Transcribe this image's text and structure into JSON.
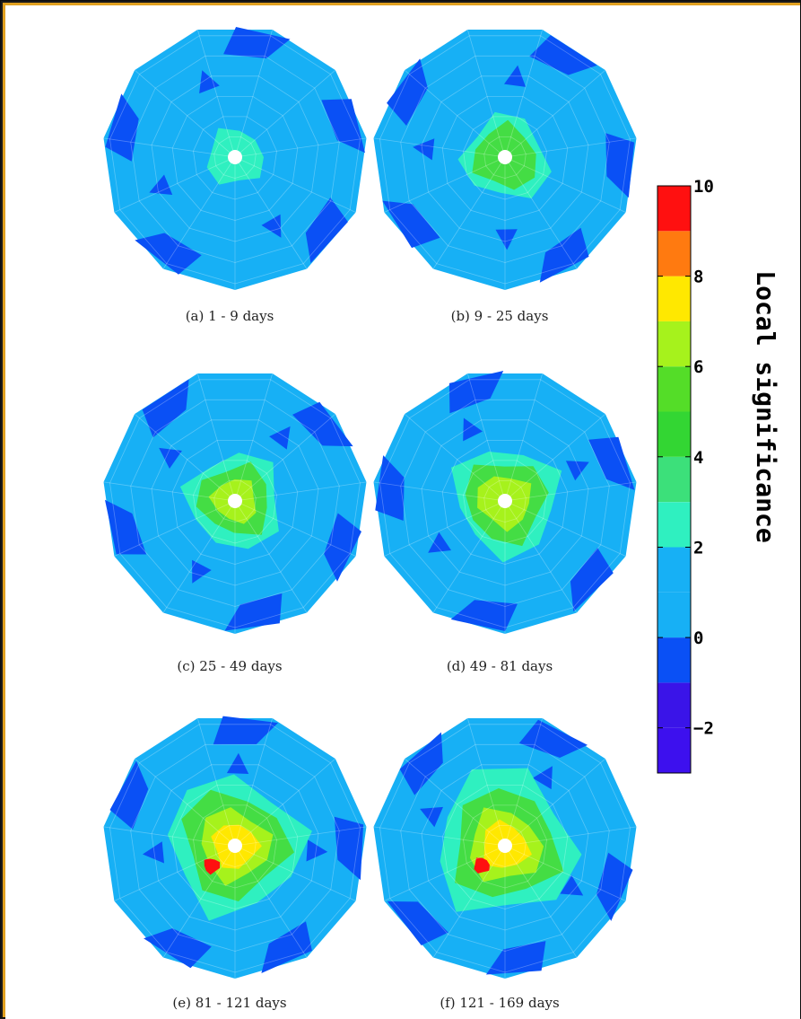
{
  "chart_data": [
    {
      "type": "heatmap",
      "panel": "a",
      "caption": "(a) 1 - 9 days",
      "peak_local_significance": 2.5
    },
    {
      "type": "heatmap",
      "panel": "b",
      "caption": "(b) 9 - 25 days",
      "peak_local_significance": 4.5
    },
    {
      "type": "heatmap",
      "panel": "c",
      "caption": "(c) 25 - 49 days",
      "peak_local_significance": 5.5
    },
    {
      "type": "heatmap",
      "panel": "d",
      "caption": "(d) 49 - 81 days",
      "peak_local_significance": 6.5
    },
    {
      "type": "heatmap",
      "panel": "e",
      "caption": "(e) 81 - 121 days",
      "peak_local_significance": 8.5
    },
    {
      "type": "heatmap",
      "panel": "f",
      "caption": "(f) 121 - 169 days",
      "peak_local_significance": 9.0
    }
  ],
  "colorbar": {
    "label": "Local significance",
    "range": [
      -3,
      10
    ],
    "ticks": [
      "10",
      "8",
      "6",
      "4",
      "2",
      "0",
      "−2"
    ],
    "tick_values": [
      10,
      8,
      6,
      4,
      2,
      0,
      -2
    ],
    "bands": [
      {
        "from": -3,
        "to": -2,
        "color": "#3d10ee"
      },
      {
        "from": -2,
        "to": -1,
        "color": "#3a14e8"
      },
      {
        "from": -1,
        "to": 0,
        "color": "#0a50f5"
      },
      {
        "from": 0,
        "to": 1,
        "color": "#17b0f5"
      },
      {
        "from": 1,
        "to": 2,
        "color": "#17b0f5"
      },
      {
        "from": 2,
        "to": 3,
        "color": "#2ff0c0"
      },
      {
        "from": 3,
        "to": 4,
        "color": "#3ce07a"
      },
      {
        "from": 4,
        "to": 5,
        "color": "#33d633"
      },
      {
        "from": 5,
        "to": 6,
        "color": "#54dd28"
      },
      {
        "from": 6,
        "to": 7,
        "color": "#a6f21c"
      },
      {
        "from": 7,
        "to": 8,
        "color": "#ffe800"
      },
      {
        "from": 8,
        "to": 9,
        "color": "#ff7a10"
      },
      {
        "from": 9,
        "to": 10,
        "color": "#ff1010"
      }
    ]
  },
  "colors": {
    "background": "#17b0f5",
    "low": "#0a50f5",
    "very_low": "#3d10ee",
    "mid": "#2ff0c0",
    "green": "#44dd44",
    "lime": "#a6f21c",
    "yellow": "#ffe800",
    "red": "#ff1010"
  }
}
